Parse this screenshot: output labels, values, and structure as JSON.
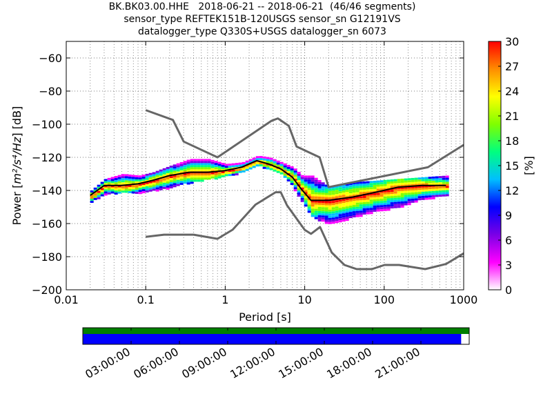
{
  "header": {
    "line1": "BK.BK03.00.HHE   2018-06-21 -- 2018-06-21  (46/46 segments)",
    "line2": "sensor_type REFTEK151B-120USGS sensor_sn G12191VS",
    "line3": "datalogger_type Q330S+USGS datalogger_sn 6073"
  },
  "chart_data": [
    {
      "type": "heatmap",
      "title": "",
      "xlabel": "Period [s]",
      "ylabel": "Power [m²/s⁴/Hz] [dB]",
      "ylabel_parts": {
        "prefix": "Power [",
        "math": "m²/s⁴/Hz",
        "suffix": "] [dB]"
      },
      "xscale": "log",
      "xlim": [
        0.01,
        1000
      ],
      "ylim": [
        -200,
        -50
      ],
      "x_ticks": [
        0.01,
        0.1,
        1,
        10,
        100,
        1000
      ],
      "x_tick_labels": [
        "0.01",
        "0.1",
        "1",
        "10",
        "100",
        "1000"
      ],
      "y_ticks": [
        -60,
        -80,
        -100,
        -120,
        -140,
        -160,
        -180,
        -200
      ],
      "y_tick_labels": [
        "−60",
        "−80",
        "−100",
        "−120",
        "−140",
        "−160",
        "−180",
        "−200"
      ],
      "grid": "dotted, log x",
      "colorbar": {
        "label": "[%]",
        "range": [
          0,
          30
        ],
        "ticks": [
          0,
          3,
          6,
          9,
          12,
          15,
          18,
          21,
          24,
          27,
          30
        ],
        "colormap": "pqlx",
        "colors": [
          "#ffffff",
          "#ff00ff",
          "#7a00e6",
          "#0000ff",
          "#00bfff",
          "#00ff7f",
          "#7fff00",
          "#ffff00",
          "#ff8c00",
          "#ff0000"
        ]
      },
      "series": [
        {
          "name": "",
          "style": "mean/median curve (black)",
          "color": "#000000",
          "x": [
            0.02,
            0.03,
            0.05,
            0.08,
            0.12,
            0.2,
            0.35,
            0.6,
            1.0,
            1.6,
            2.5,
            3.5,
            5,
            7,
            9,
            12,
            20,
            40,
            80,
            150,
            300,
            600
          ],
          "y": [
            -143,
            -137,
            -137,
            -136,
            -134,
            -131,
            -129,
            -129,
            -128,
            -126,
            -122,
            -124,
            -127,
            -132,
            -139,
            -146,
            -146,
            -144,
            -141,
            -138,
            -137,
            -137
          ]
        },
        {
          "name": "",
          "style": "high noise model (gray)",
          "color": "#666666",
          "x": [
            0.1,
            0.22,
            0.3,
            0.8,
            3.8,
            4.6,
            6.3,
            7.9,
            15.4,
            20,
            354.8,
            1000
          ],
          "y": [
            -91.5,
            -97.4,
            -110.5,
            -120,
            -98,
            -96.5,
            -101,
            -113.5,
            -120,
            -138,
            -126,
            -112.5
          ]
        },
        {
          "name": "",
          "style": "low noise model (gray)",
          "color": "#666666",
          "x": [
            0.1,
            0.17,
            0.4,
            0.8,
            1.24,
            2.4,
            4.3,
            5,
            6,
            10,
            12,
            15.6,
            21.9,
            31.6,
            45,
            70,
            101,
            154,
            328,
            600,
            1000
          ],
          "y": [
            -168,
            -166.7,
            -166.7,
            -169.2,
            -163.7,
            -148.6,
            -141.1,
            -141.1,
            -149,
            -163.8,
            -166.2,
            -162.1,
            -177.5,
            -185,
            -187.5,
            -187.5,
            -185,
            -185,
            -187.5,
            -184.4,
            -178
          ]
        }
      ],
      "density_bands": [
        {
          "name": "",
          "x": [
            0.02,
            0.03,
            0.05,
            0.08,
            0.12,
            0.2,
            0.35,
            0.6,
            1.0,
            1.6,
            2.5,
            3.5,
            5,
            7,
            9,
            12,
            20,
            40,
            80,
            150,
            300,
            600
          ],
          "y_low": [
            -147,
            -142,
            -141,
            -141,
            -140,
            -138,
            -135,
            -133,
            -131,
            -129,
            -125,
            -127,
            -130,
            -138,
            -147,
            -156,
            -160,
            -156,
            -152,
            -150,
            -145,
            -143
          ],
          "y_high": [
            -140,
            -133,
            -130,
            -131,
            -129,
            -125,
            -121,
            -121,
            -124,
            -123,
            -119,
            -120,
            -123,
            -126,
            -131,
            -131,
            -138,
            -135,
            -134,
            -133,
            -132,
            -131
          ]
        }
      ]
    },
    {
      "type": "timeline",
      "title": "",
      "tick_labels": [
        "03:00:00",
        "06:00:00",
        "09:00:00",
        "12:00:00",
        "15:00:00",
        "18:00:00",
        "21:00:00"
      ],
      "tick_hours": [
        3,
        6,
        9,
        12,
        15,
        18,
        21
      ],
      "range_hours": [
        0,
        24
      ],
      "bars": [
        {
          "name": "",
          "color": "#008000",
          "start_hour": 0,
          "end_hour": 24
        },
        {
          "name": "",
          "color": "#0000ff",
          "start_hour": 0,
          "end_hour": 23.5
        }
      ]
    }
  ]
}
